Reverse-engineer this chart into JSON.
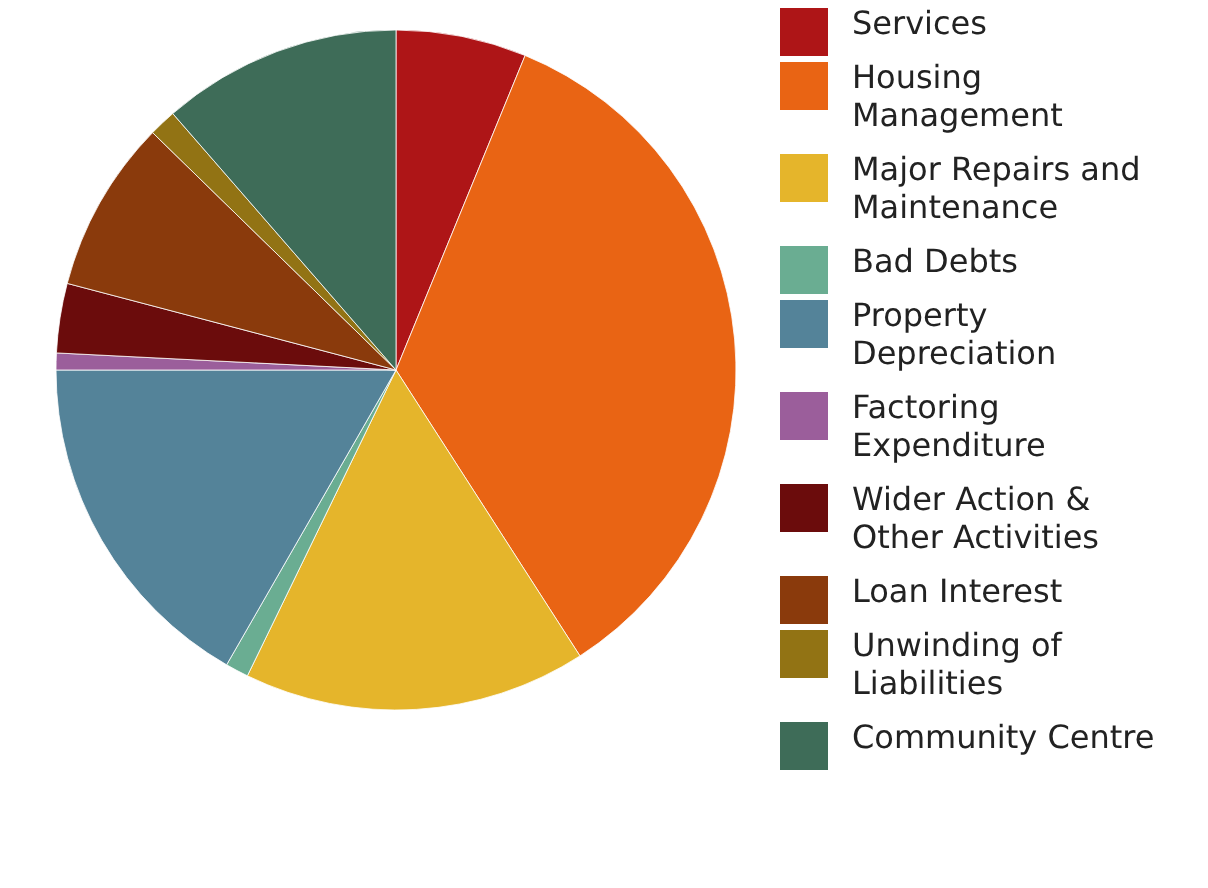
{
  "chart_data": {
    "type": "pie",
    "categories": [
      "Services",
      "Housing Management",
      "Major Repairs and Maintenance",
      "Bad Debts",
      "Property Depreciation",
      "Factoring Expenditure",
      "Wider Action & Other Activities",
      "Loan Interest",
      "Unwinding of Liabilities",
      "Community Centre"
    ],
    "values": [
      6.2,
      34.7,
      16.3,
      1.1,
      16.7,
      0.8,
      3.3,
      8.2,
      1.3,
      11.4
    ],
    "colors": [
      "#ae1517",
      "#e96414",
      "#e5b52b",
      "#6aad92",
      "#548399",
      "#9b5e9b",
      "#6b0c0c",
      "#8a3a0c",
      "#927314",
      "#3e6c58"
    ],
    "legend": "right"
  }
}
